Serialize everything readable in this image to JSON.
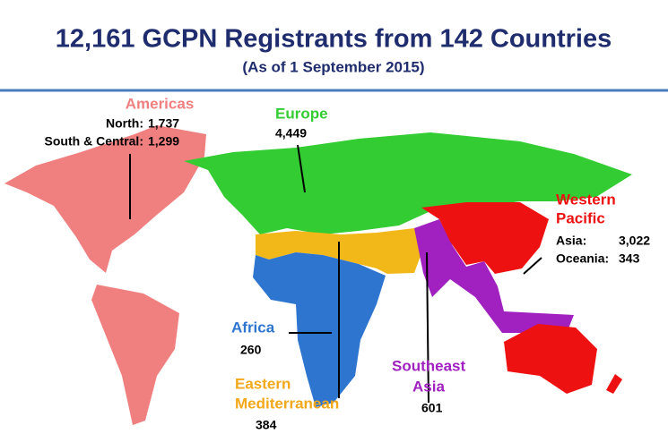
{
  "header": {
    "title": "12,161 GCPN Registrants from 142 Countries",
    "subtitle": "(As of 1 September 2015)"
  },
  "regions": {
    "americas": {
      "name": "Americas",
      "entries": [
        {
          "label": "North:",
          "value": "1,737"
        },
        {
          "label": "South & Central:",
          "value": "1,299"
        }
      ]
    },
    "europe": {
      "name": "Europe",
      "value": "4,449"
    },
    "western_pacific": {
      "name_lines": [
        "Western",
        "Pacific"
      ],
      "entries": [
        {
          "label": "Asia:",
          "value": "3,022"
        },
        {
          "label": "Oceania:",
          "value": "343"
        }
      ]
    },
    "africa": {
      "name": "Africa",
      "value": "260"
    },
    "eastern_mediterranean": {
      "name_lines": [
        "Eastern",
        "Mediterranean"
      ],
      "value": "384"
    },
    "southeast_asia": {
      "name_lines": [
        "Southeast",
        "Asia"
      ],
      "value": "601"
    }
  }
}
